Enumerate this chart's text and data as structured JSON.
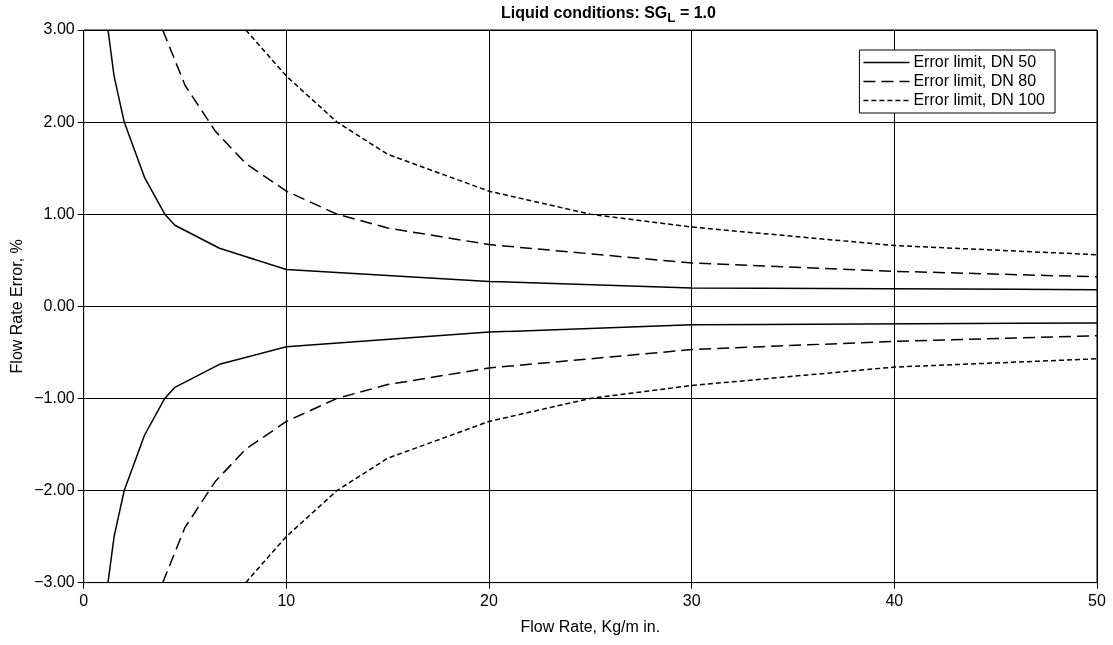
{
  "chart_data": {
    "type": "line",
    "title": "Liquid conditions: SG$_{L}$ = 1.0",
    "xlabel": "Flow Rate, Kg/m in.",
    "ylabel": "Flow Rate Error, %",
    "xlim": [
      0,
      50
    ],
    "xticks": [
      0,
      10,
      20,
      30,
      40,
      50
    ],
    "ylim": [
      -3,
      3
    ],
    "yticks": [
      {
        "value": -3,
        "label": "−3.00"
      },
      {
        "value": -2,
        "label": "−2.00"
      },
      {
        "value": -1,
        "label": "−1.00"
      },
      {
        "value": 0,
        "label": "0.00"
      },
      {
        "value": 1,
        "label": "1.00"
      },
      {
        "value": 2,
        "label": "2.00"
      },
      {
        "value": 3,
        "label": "3.00"
      }
    ],
    "grid": true,
    "legend": "top right",
    "marker": "none",
    "series": [
      {
        "name": "Error limit, DN 50",
        "color": "#000000",
        "line_style": "solid",
        "x": [
          1.2,
          1.5,
          2,
          3,
          4,
          4.5,
          6.7,
          10,
          20,
          30,
          50
        ],
        "values": [
          3,
          2.5,
          2,
          1.4,
          1,
          0.88,
          0.63,
          0.4,
          0.27,
          0.2,
          0.18
        ]
      },
      {
        "name": "Error limit, DN 80",
        "color": "#000000",
        "line_style": "dashed",
        "x": [
          3.9,
          5,
          6.5,
          8,
          10,
          12.5,
          15,
          20,
          30,
          40,
          50
        ],
        "values": [
          3,
          2.4,
          1.9,
          1.55,
          1.25,
          1.0,
          0.85,
          0.67,
          0.47,
          0.38,
          0.32
        ]
      },
      {
        "name": "Error limit, DN 100",
        "color": "#000000",
        "line_style": "dotted",
        "x": [
          8,
          10,
          12.5,
          15,
          20,
          25,
          30,
          40,
          50
        ],
        "values": [
          3,
          2.5,
          2,
          1.65,
          1.25,
          1.0,
          0.86,
          0.66,
          0.56
        ]
      },
      {
        "color": "#000000",
        "line_style": "solid",
        "x": [
          1.2,
          1.5,
          2,
          3,
          4,
          4.5,
          6.7,
          10,
          20,
          30,
          50
        ],
        "values": [
          -3,
          -2.5,
          -2,
          -1.4,
          -1,
          -0.88,
          -0.63,
          -0.44,
          -0.28,
          -0.2,
          -0.18
        ]
      },
      {
        "color": "#000000",
        "line_style": "dashed",
        "x": [
          3.9,
          5,
          6.5,
          8,
          10,
          12.5,
          15,
          20,
          30,
          40,
          50
        ],
        "values": [
          -3,
          -2.4,
          -1.9,
          -1.55,
          -1.25,
          -1.0,
          -0.85,
          -0.67,
          -0.47,
          -0.38,
          -0.32
        ]
      },
      {
        "color": "#000000",
        "line_style": "dotted",
        "x": [
          8,
          10,
          12.5,
          15,
          20,
          25,
          30,
          40,
          50
        ],
        "values": [
          -3,
          -2.5,
          -2,
          -1.65,
          -1.25,
          -1.0,
          -0.86,
          -0.66,
          -0.57
        ]
      }
    ]
  }
}
